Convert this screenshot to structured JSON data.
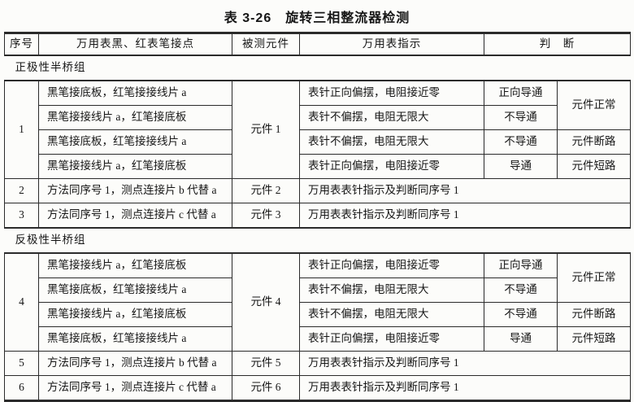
{
  "page": {
    "title": "表 3-26　旋转三相整流器检测",
    "colors": {
      "text": "#161616",
      "line": "#2b2b2b",
      "background": "#fcfcfa"
    }
  },
  "table": {
    "rows": [
      {
        "type": "header",
        "cells": [
          {
            "t": "序号"
          },
          {
            "t": "万用表黑、红表笔接点"
          },
          {
            "t": "被测元件"
          },
          {
            "t": "万用表指示"
          },
          {
            "t": "判　断",
            "colspan": 2
          }
        ]
      },
      {
        "type": "section",
        "cells": [
          {
            "t": "正极性半桥组",
            "colspan": 6
          }
        ]
      },
      {
        "type": "data",
        "cells": [
          {
            "t": "1",
            "rowspan": 4
          },
          {
            "t": "黑笔接底板，红笔接接线片 a"
          },
          {
            "t": "元件 1",
            "rowspan": 4
          },
          {
            "t": "表针正向偏摆，电阻接近零"
          },
          {
            "t": "正向导通"
          },
          {
            "t": "元件正常",
            "rowspan": 2
          }
        ]
      },
      {
        "type": "data",
        "cells": [
          {
            "t": "黑笔接接线片 a，红笔接底板"
          },
          {
            "t": "表针不偏摆，电阻无限大"
          },
          {
            "t": "不导通"
          }
        ]
      },
      {
        "type": "data",
        "cells": [
          {
            "t": "黑笔接底板，红笔接接线片 a"
          },
          {
            "t": "表针不偏摆，电阻无限大"
          },
          {
            "t": "不导通"
          },
          {
            "t": "元件断路"
          }
        ]
      },
      {
        "type": "data",
        "cells": [
          {
            "t": "黑笔接接线片 a，红笔接底板"
          },
          {
            "t": "表针正向偏摆，电阻接近零"
          },
          {
            "t": "导通"
          },
          {
            "t": "元件短路"
          }
        ]
      },
      {
        "type": "data",
        "cells": [
          {
            "t": "2"
          },
          {
            "t": "方法同序号 1，测点连接片 b 代替 a"
          },
          {
            "t": "元件 2"
          },
          {
            "t": "万用表表针指示及判断同序号 1",
            "colspan": 3
          }
        ]
      },
      {
        "type": "data",
        "cells": [
          {
            "t": "3"
          },
          {
            "t": "方法同序号 1，测点连接片 c 代替 a"
          },
          {
            "t": "元件 3"
          },
          {
            "t": "万用表表针指示及判断同序号 1",
            "colspan": 3
          }
        ]
      },
      {
        "type": "section",
        "cells": [
          {
            "t": "反极性半桥组",
            "colspan": 6
          }
        ]
      },
      {
        "type": "data",
        "cells": [
          {
            "t": "4",
            "rowspan": 4
          },
          {
            "t": "黑笔接接线片 a，红笔接底板"
          },
          {
            "t": "元件 4",
            "rowspan": 4
          },
          {
            "t": "表针正向偏摆，电阻接近零"
          },
          {
            "t": "正向导通"
          },
          {
            "t": "元件正常",
            "rowspan": 2
          }
        ]
      },
      {
        "type": "data",
        "cells": [
          {
            "t": "黑笔接底板，红笔接接线片 a"
          },
          {
            "t": "表针不偏摆，电阻无限大"
          },
          {
            "t": "不导通"
          }
        ]
      },
      {
        "type": "data",
        "cells": [
          {
            "t": "黑笔接接线片 a，红笔接底板"
          },
          {
            "t": "表针不偏摆，电阻无限大"
          },
          {
            "t": "不导通"
          },
          {
            "t": "元件断路"
          }
        ]
      },
      {
        "type": "data",
        "cells": [
          {
            "t": "黑笔接底板，红笔接接线片 a"
          },
          {
            "t": "表针正向偏摆，电阻接近零"
          },
          {
            "t": "导通"
          },
          {
            "t": "元件短路"
          }
        ]
      },
      {
        "type": "data",
        "cells": [
          {
            "t": "5"
          },
          {
            "t": "方法同序号 1，测点连接片 b 代替 a"
          },
          {
            "t": "元件 5"
          },
          {
            "t": "万用表表针指示及判断同序号 1",
            "colspan": 3
          }
        ]
      },
      {
        "type": "data",
        "cells": [
          {
            "t": "6"
          },
          {
            "t": "方法同序号 1，测点连接片 c 代替 a"
          },
          {
            "t": "元件 6"
          },
          {
            "t": "万用表表针指示及判断同序号 1",
            "colspan": 3
          }
        ]
      }
    ]
  }
}
